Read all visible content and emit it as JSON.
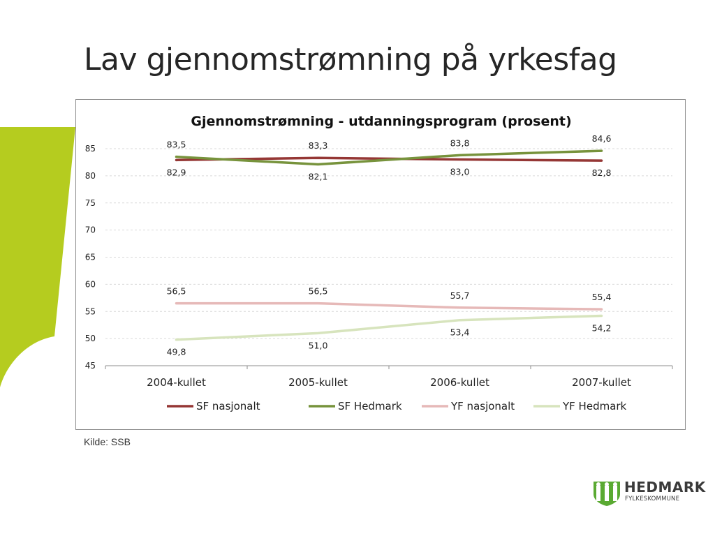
{
  "slide": {
    "title": "Lav gjennomstrømning på yrkesfag",
    "source": "Kilde: SSB"
  },
  "logo": {
    "name": "HEDMARK",
    "subtitle": "FYLKESKOMMUNE",
    "icon": "hedmark-coat-of-arms-icon",
    "color": "#5aaa32"
  },
  "decoration": {
    "accent_color": "#b5cc1f"
  },
  "chart_data": {
    "type": "line",
    "title": "Gjennomstrømning - utdanningsprogram (prosent)",
    "xlabel": "",
    "ylabel": "",
    "categories": [
      "2004-kullet",
      "2005-kullet",
      "2006-kullet",
      "2007-kullet"
    ],
    "ylim": [
      45,
      85
    ],
    "yticks": [
      45,
      50,
      55,
      60,
      65,
      70,
      75,
      80,
      85
    ],
    "grid": true,
    "legend": "bottom",
    "series": [
      {
        "name": "SF nasjonalt",
        "color": "#953735",
        "values": [
          82.9,
          83.3,
          83.0,
          82.8
        ],
        "labels": [
          "82,9",
          "83,3",
          "83,0",
          "82,8"
        ],
        "label_pos": [
          "below",
          "above",
          "below",
          "below"
        ]
      },
      {
        "name": "SF Hedmark",
        "color": "#77933c",
        "values": [
          83.5,
          82.1,
          83.8,
          84.6
        ],
        "labels": [
          "83,5",
          "82,1",
          "83,8",
          "84,6"
        ],
        "label_pos": [
          "above",
          "below",
          "above",
          "above"
        ]
      },
      {
        "name": "YF nasjonalt",
        "color": "#e6b9b8",
        "values": [
          56.5,
          56.5,
          55.7,
          55.4
        ],
        "labels": [
          "56,5",
          "56,5",
          "55,7",
          "55,4"
        ],
        "label_pos": [
          "above",
          "above",
          "above",
          "above"
        ]
      },
      {
        "name": "YF Hedmark",
        "color": "#d7e4bd",
        "values": [
          49.8,
          51.0,
          53.4,
          54.2
        ],
        "labels": [
          "49,8",
          "51,0",
          "53,4",
          "54,2"
        ],
        "label_pos": [
          "below",
          "below",
          "below",
          "below"
        ]
      }
    ]
  }
}
